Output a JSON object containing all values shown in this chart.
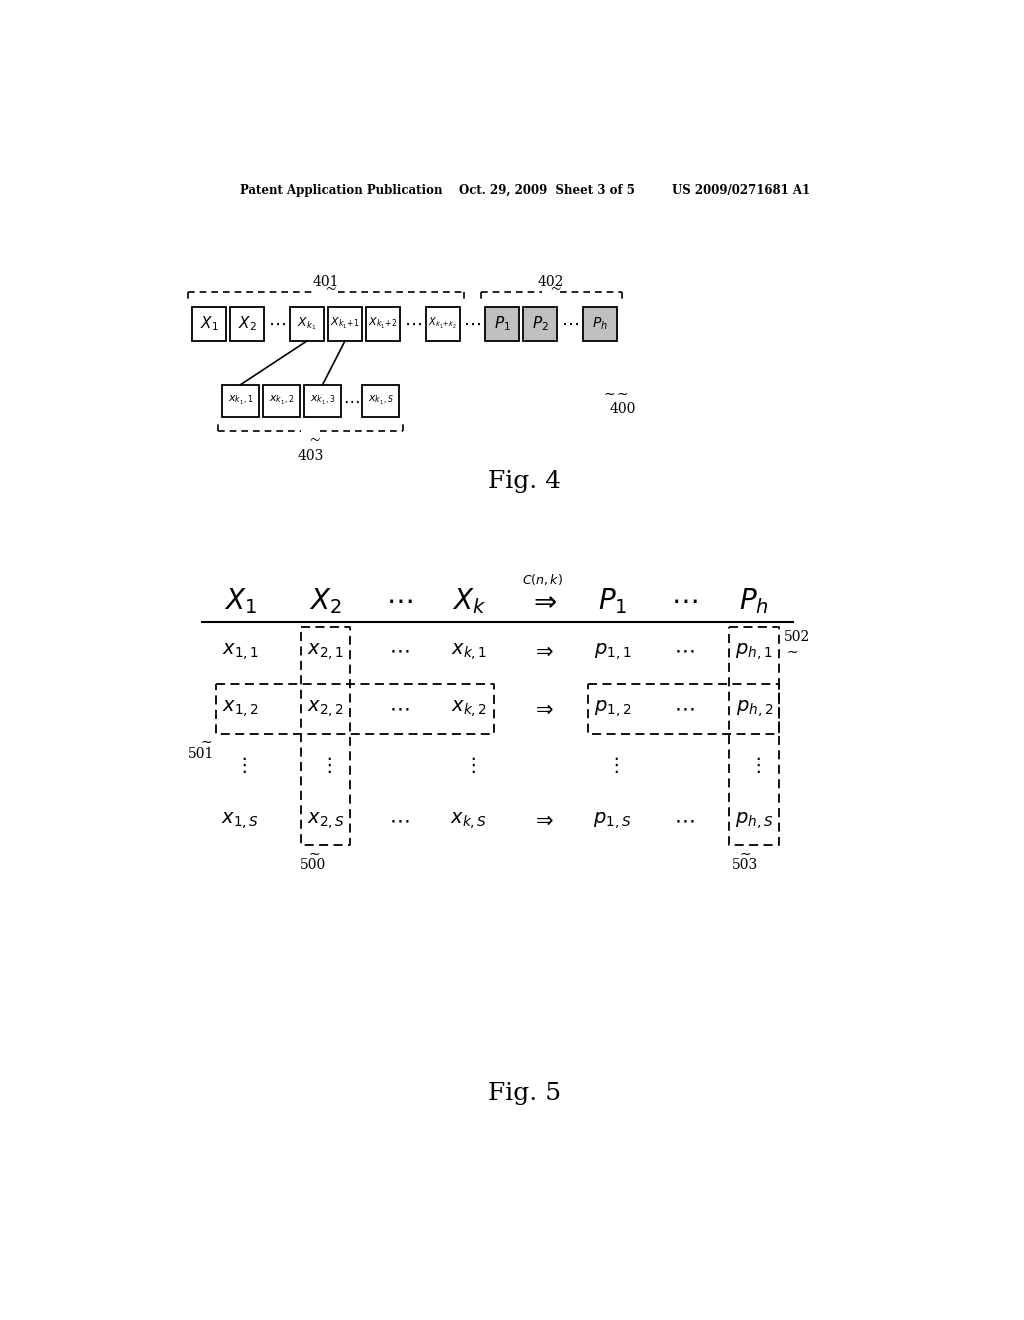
{
  "bg_color": "#ffffff",
  "header_text": "Patent Application Publication    Oct. 29, 2009  Sheet 3 of 5         US 2009/0271681 A1",
  "fig4_label": "Fig. 4",
  "fig5_label": "Fig. 5"
}
